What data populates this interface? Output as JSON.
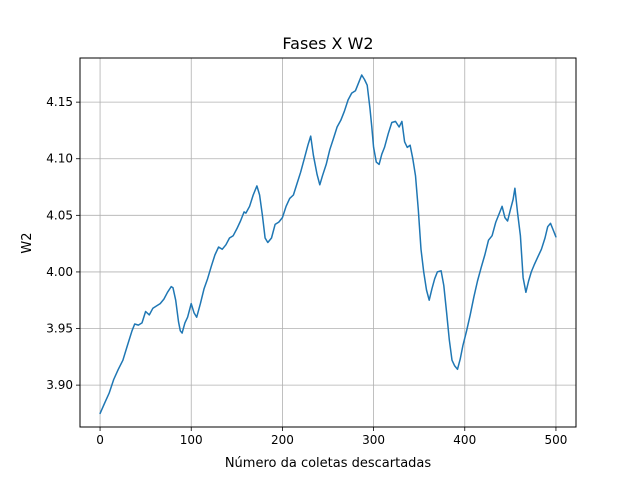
{
  "chart_data": {
    "type": "line",
    "title": "Fases X W2",
    "xlabel": "Número da coletas descartadas",
    "ylabel": "W2",
    "xlim": [
      -22,
      522
    ],
    "ylim": [
      3.863,
      4.189
    ],
    "xticks": [
      0,
      100,
      200,
      300,
      400,
      500
    ],
    "xtick_labels": [
      "0",
      "100",
      "200",
      "300",
      "400",
      "500"
    ],
    "yticks": [
      3.9,
      3.95,
      4.0,
      4.05,
      4.1,
      4.15
    ],
    "ytick_labels": [
      "3.90",
      "3.95",
      "4.00",
      "4.05",
      "4.10",
      "4.15"
    ],
    "grid": true,
    "legend": "none",
    "series": [
      {
        "color": "#1f77b4",
        "points": [
          [
            0,
            3.875
          ],
          [
            5,
            3.884
          ],
          [
            10,
            3.893
          ],
          [
            15,
            3.905
          ],
          [
            20,
            3.914
          ],
          [
            25,
            3.922
          ],
          [
            30,
            3.935
          ],
          [
            35,
            3.948
          ],
          [
            38,
            3.954
          ],
          [
            42,
            3.953
          ],
          [
            46,
            3.955
          ],
          [
            50,
            3.965
          ],
          [
            54,
            3.962
          ],
          [
            58,
            3.968
          ],
          [
            62,
            3.97
          ],
          [
            66,
            3.972
          ],
          [
            70,
            3.976
          ],
          [
            74,
            3.982
          ],
          [
            78,
            3.987
          ],
          [
            80,
            3.986
          ],
          [
            83,
            3.975
          ],
          [
            86,
            3.956
          ],
          [
            88,
            3.948
          ],
          [
            90,
            3.946
          ],
          [
            93,
            3.955
          ],
          [
            96,
            3.96
          ],
          [
            100,
            3.972
          ],
          [
            103,
            3.964
          ],
          [
            106,
            3.96
          ],
          [
            110,
            3.972
          ],
          [
            114,
            3.985
          ],
          [
            118,
            3.994
          ],
          [
            122,
            4.005
          ],
          [
            126,
            4.015
          ],
          [
            130,
            4.022
          ],
          [
            134,
            4.02
          ],
          [
            138,
            4.024
          ],
          [
            142,
            4.03
          ],
          [
            146,
            4.032
          ],
          [
            150,
            4.038
          ],
          [
            154,
            4.045
          ],
          [
            158,
            4.053
          ],
          [
            160,
            4.052
          ],
          [
            164,
            4.058
          ],
          [
            168,
            4.068
          ],
          [
            172,
            4.076
          ],
          [
            175,
            4.068
          ],
          [
            178,
            4.05
          ],
          [
            181,
            4.03
          ],
          [
            184,
            4.026
          ],
          [
            188,
            4.03
          ],
          [
            192,
            4.042
          ],
          [
            196,
            4.044
          ],
          [
            200,
            4.048
          ],
          [
            204,
            4.058
          ],
          [
            208,
            4.065
          ],
          [
            212,
            4.068
          ],
          [
            216,
            4.078
          ],
          [
            220,
            4.088
          ],
          [
            224,
            4.1
          ],
          [
            228,
            4.112
          ],
          [
            231,
            4.12
          ],
          [
            234,
            4.103
          ],
          [
            238,
            4.086
          ],
          [
            241,
            4.077
          ],
          [
            244,
            4.085
          ],
          [
            248,
            4.095
          ],
          [
            252,
            4.108
          ],
          [
            256,
            4.118
          ],
          [
            260,
            4.128
          ],
          [
            264,
            4.134
          ],
          [
            268,
            4.142
          ],
          [
            272,
            4.152
          ],
          [
            276,
            4.158
          ],
          [
            280,
            4.16
          ],
          [
            284,
            4.168
          ],
          [
            287,
            4.174
          ],
          [
            290,
            4.17
          ],
          [
            293,
            4.165
          ],
          [
            296,
            4.145
          ],
          [
            298,
            4.128
          ],
          [
            300,
            4.11
          ],
          [
            303,
            4.097
          ],
          [
            306,
            4.095
          ],
          [
            309,
            4.104
          ],
          [
            312,
            4.11
          ],
          [
            316,
            4.122
          ],
          [
            320,
            4.132
          ],
          [
            324,
            4.133
          ],
          [
            328,
            4.128
          ],
          [
            331,
            4.133
          ],
          [
            334,
            4.115
          ],
          [
            337,
            4.11
          ],
          [
            340,
            4.112
          ],
          [
            343,
            4.1
          ],
          [
            346,
            4.085
          ],
          [
            349,
            4.055
          ],
          [
            352,
            4.02
          ],
          [
            355,
            4.0
          ],
          [
            358,
            3.984
          ],
          [
            361,
            3.975
          ],
          [
            364,
            3.985
          ],
          [
            367,
            3.994
          ],
          [
            370,
            4.0
          ],
          [
            374,
            4.001
          ],
          [
            377,
            3.988
          ],
          [
            380,
            3.965
          ],
          [
            383,
            3.94
          ],
          [
            386,
            3.922
          ],
          [
            389,
            3.917
          ],
          [
            392,
            3.914
          ],
          [
            395,
            3.923
          ],
          [
            398,
            3.935
          ],
          [
            402,
            3.948
          ],
          [
            406,
            3.962
          ],
          [
            410,
            3.978
          ],
          [
            414,
            3.992
          ],
          [
            418,
            4.004
          ],
          [
            422,
            4.015
          ],
          [
            426,
            4.028
          ],
          [
            430,
            4.032
          ],
          [
            434,
            4.044
          ],
          [
            438,
            4.052
          ],
          [
            441,
            4.058
          ],
          [
            444,
            4.048
          ],
          [
            447,
            4.045
          ],
          [
            450,
            4.055
          ],
          [
            453,
            4.064
          ],
          [
            455,
            4.074
          ],
          [
            458,
            4.052
          ],
          [
            461,
            4.032
          ],
          [
            464,
            3.995
          ],
          [
            467,
            3.982
          ],
          [
            470,
            3.992
          ],
          [
            473,
            4.0
          ],
          [
            476,
            4.006
          ],
          [
            480,
            4.013
          ],
          [
            484,
            4.02
          ],
          [
            488,
            4.03
          ],
          [
            491,
            4.04
          ],
          [
            494,
            4.043
          ],
          [
            497,
            4.037
          ],
          [
            500,
            4.031
          ]
        ]
      }
    ]
  }
}
